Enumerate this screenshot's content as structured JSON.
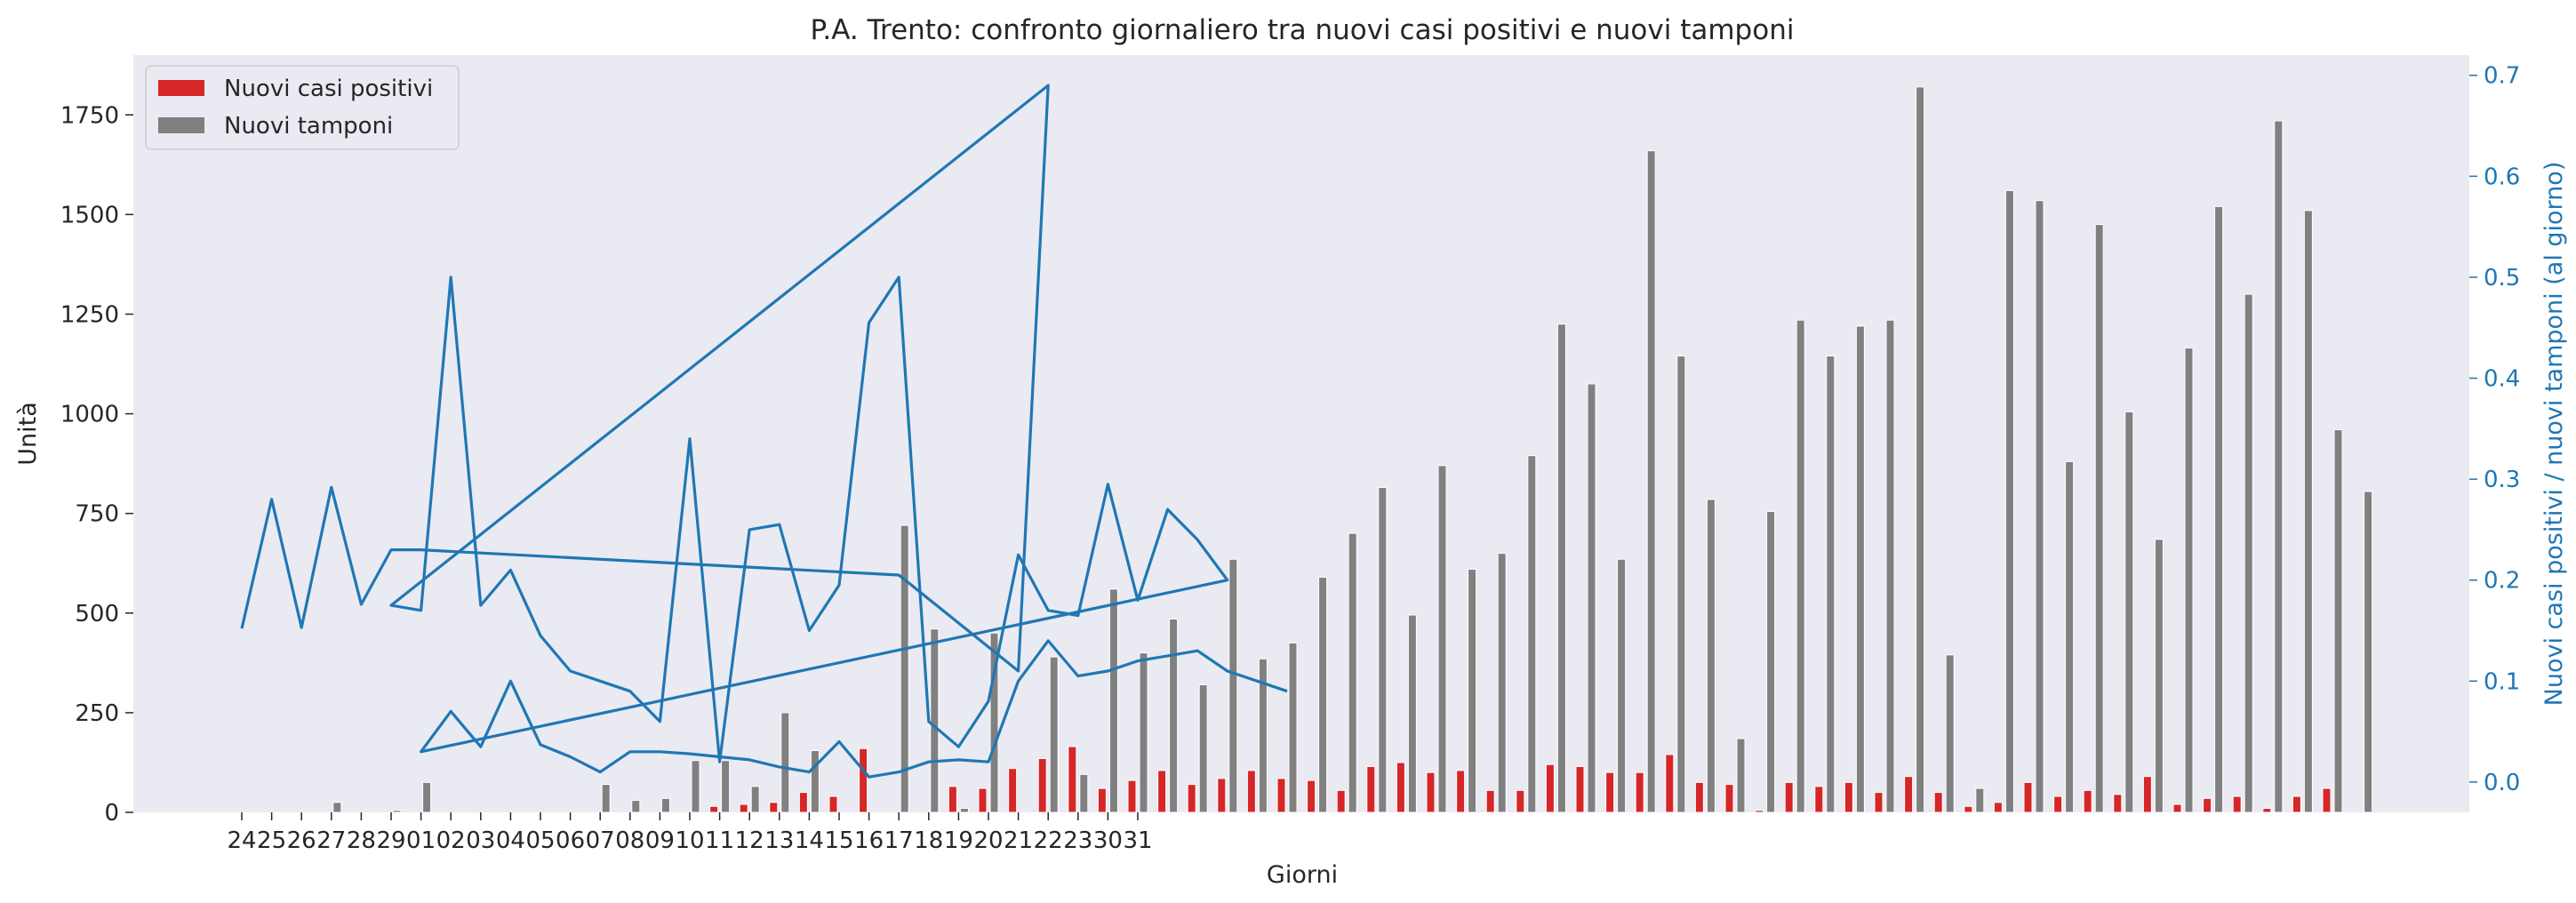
{
  "chart_data": {
    "type": "bar",
    "title": "P.A. Trento: confronto giornaliero tra nuovi casi positivi e nuovi tamponi",
    "xlabel": "Giorni",
    "ylabel": "Unità",
    "ylabel_right": "Nuovi casi positivi / nuovi tamponi (al giorno)",
    "ylim": [
      0,
      1900
    ],
    "ylim_right": [
      -0.03,
      0.72
    ],
    "y_ticks": [
      0,
      250,
      500,
      750,
      1000,
      1250,
      1500,
      1750
    ],
    "y_ticks_right": [
      0.0,
      0.1,
      0.2,
      0.3,
      0.4,
      0.5,
      0.6,
      0.7
    ],
    "x_tick_labels": [
      "24",
      "25",
      "26",
      "27",
      "28",
      "29",
      "01",
      "02",
      "03",
      "04",
      "05",
      "06",
      "07",
      "08",
      "09",
      "10",
      "11",
      "12",
      "13",
      "14",
      "15",
      "16",
      "17",
      "18",
      "19",
      "20",
      "21",
      "22",
      "23",
      "30",
      "31"
    ],
    "legend_position": "upper left",
    "grid": false,
    "colors": {
      "positivi": "#d62728",
      "tamponi": "#808080",
      "ratio": "#1f77b4",
      "background": "#eaeaf2"
    },
    "series": [
      {
        "name": "Nuovi casi positivi",
        "kind": "bar",
        "values": [
          0,
          0,
          0,
          0,
          0,
          0,
          0,
          0,
          0,
          0,
          0,
          0,
          0,
          0,
          0,
          0,
          15,
          20,
          25,
          50,
          40,
          160,
          0,
          0,
          65,
          60,
          110,
          135,
          165,
          60,
          80,
          105,
          70,
          85,
          105,
          85,
          80,
          55,
          115,
          125,
          100,
          105,
          55,
          55,
          120,
          115,
          100,
          100,
          145,
          75,
          70,
          5,
          75,
          65,
          75,
          50,
          90,
          50,
          15,
          25,
          75,
          40,
          55,
          45,
          90,
          20,
          35,
          40,
          10,
          40,
          60,
          0
        ]
      },
      {
        "name": "Nuovi tamponi",
        "kind": "bar",
        "values": [
          0,
          0,
          0,
          25,
          0,
          5,
          75,
          0,
          0,
          0,
          0,
          0,
          70,
          30,
          35,
          130,
          130,
          65,
          250,
          155,
          0,
          0,
          720,
          460,
          10,
          450,
          0,
          390,
          95,
          560,
          400,
          485,
          320,
          635,
          385,
          425,
          590,
          700,
          815,
          495,
          870,
          610,
          650,
          895,
          1225,
          1075,
          635,
          1660,
          1145,
          785,
          185,
          755,
          1235,
          1145,
          1220,
          1235,
          1820,
          395,
          60,
          1560,
          1535,
          880,
          1475,
          1005,
          685,
          1165,
          1520,
          1300,
          1735,
          1510,
          960,
          805
        ]
      },
      {
        "name": "",
        "kind": "line",
        "axis": "right",
        "x": [
          0,
          1,
          2,
          3,
          4,
          5,
          6,
          22,
          26,
          27,
          5,
          6,
          7,
          8,
          9,
          10,
          11,
          12,
          13,
          14,
          15,
          16,
          17,
          18,
          19,
          20,
          21,
          22,
          23,
          24,
          25,
          26,
          27,
          28,
          29,
          30,
          31,
          32,
          33,
          6,
          7,
          8,
          9,
          10,
          11,
          12,
          13,
          14,
          15,
          16,
          17,
          18,
          19,
          20,
          21,
          22,
          23,
          24,
          25,
          26,
          27,
          28,
          29,
          30,
          31,
          32,
          33,
          34,
          35
        ],
        "y": [
          0.152,
          0.28,
          0.153,
          0.292,
          0.176,
          0.23,
          0.23,
          0.205,
          0.11,
          0.69,
          0.175,
          0.17,
          0.5,
          0.175,
          0.21,
          0.145,
          0.11,
          0.1,
          0.09,
          0.06,
          0.34,
          0.02,
          0.25,
          0.255,
          0.15,
          0.195,
          0.455,
          0.5,
          0.06,
          0.035,
          0.08,
          0.225,
          0.17,
          0.165,
          0.295,
          0.18,
          0.27,
          0.24,
          0.2,
          0.03,
          0.07,
          0.035,
          0.1,
          0.037,
          0.025,
          0.01,
          0.03,
          0.03,
          0.028,
          0.025,
          0.022,
          0.015,
          0.01,
          0.04,
          0.005,
          0.01,
          0.02,
          0.022,
          0.02,
          0.1,
          0.14,
          0.105,
          0.11,
          0.12,
          0.125,
          0.13,
          0.11,
          0.1,
          0.09
        ]
      }
    ]
  }
}
